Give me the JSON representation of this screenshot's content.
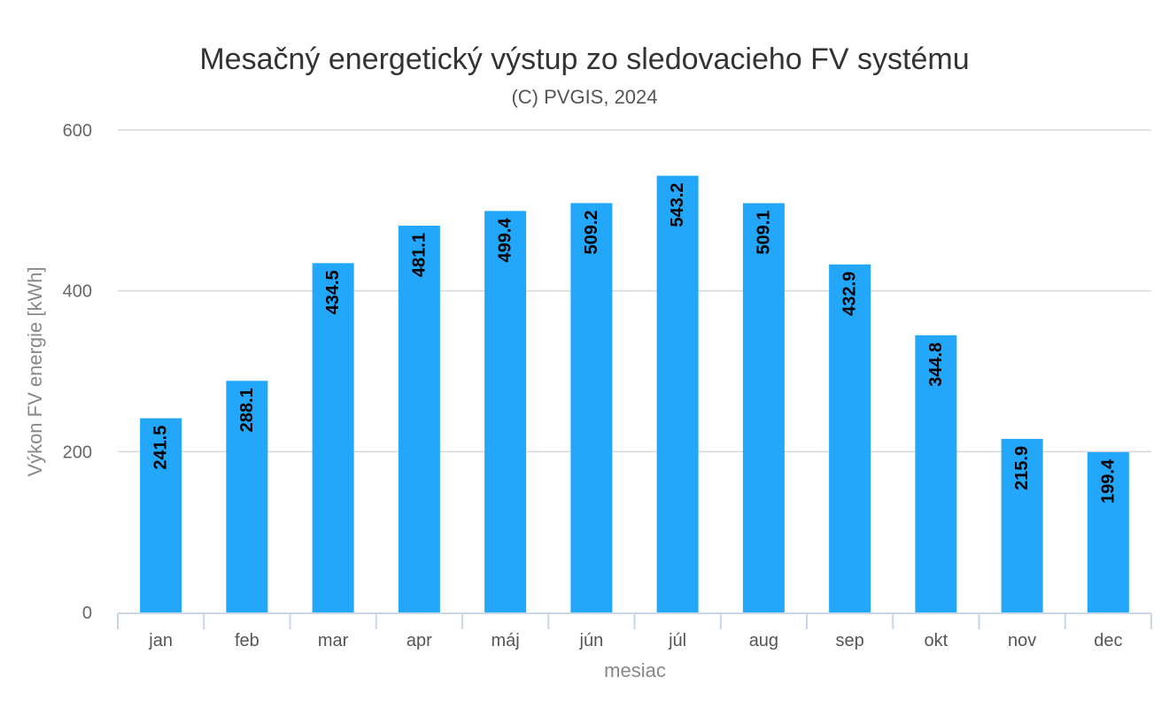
{
  "chart_data": {
    "type": "bar",
    "title": "Mesačný energetický výstup zo sledovacieho FV systému",
    "subtitle": "(C) PVGIS, 2024",
    "xlabel": "mesiac",
    "ylabel": "Výkon FV energie [kWh]",
    "categories": [
      "jan",
      "feb",
      "mar",
      "apr",
      "máj",
      "jún",
      "júl",
      "aug",
      "sep",
      "okt",
      "nov",
      "dec"
    ],
    "values": [
      241.5,
      288.1,
      434.5,
      481.1,
      499.4,
      509.2,
      543.2,
      509.1,
      432.9,
      344.8,
      215.9,
      199.4
    ],
    "value_labels": [
      "241.5",
      "288.1",
      "434.5",
      "481.1",
      "499.4",
      "509.2",
      "543.2",
      "509.1",
      "432.9",
      "344.8",
      "215.9",
      "199.4"
    ],
    "ylim": [
      0,
      600
    ],
    "yticks": [
      0,
      200,
      400,
      600
    ],
    "ytick_labels": [
      "0",
      "200",
      "400",
      "600"
    ],
    "grid": true,
    "legend": "none",
    "bar_color": "#22a7fb"
  }
}
